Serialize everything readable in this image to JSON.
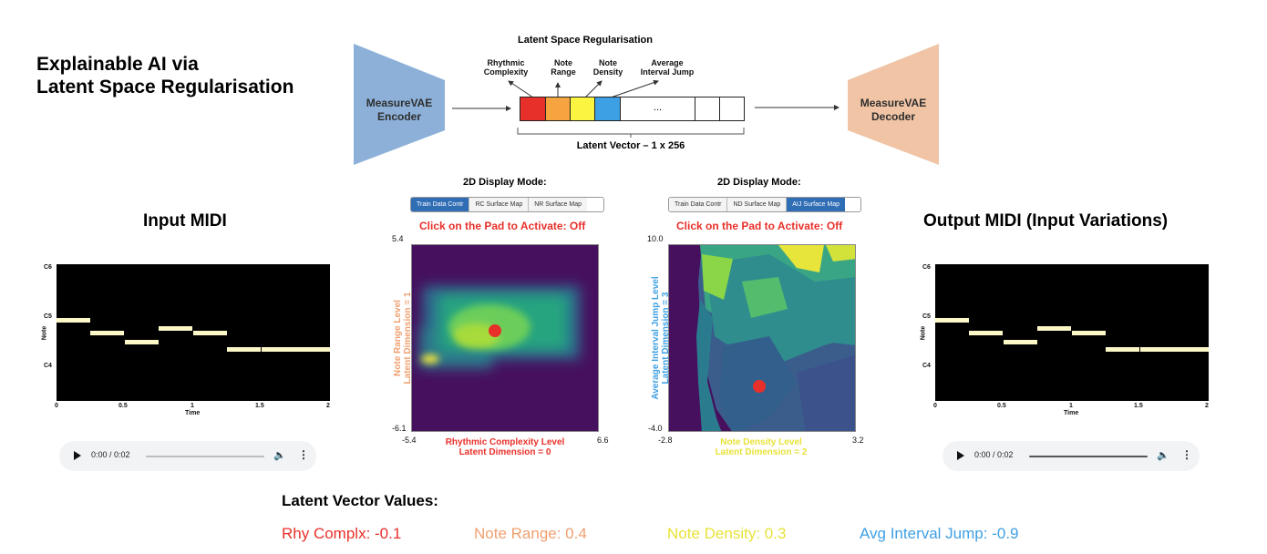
{
  "title": {
    "line1": "Explainable AI via",
    "line2": "Latent Space Regularisation"
  },
  "diagram": {
    "heading": "Latent Space Regularisation",
    "encoder": {
      "line1": "MeasureVAE",
      "line2": "Encoder",
      "color": "#8cb0d8"
    },
    "decoder": {
      "line1": "MeasureVAE",
      "line2": "Decoder",
      "color": "#f0c4a4"
    },
    "vector_caption": "Latent Vector – 1 x 256",
    "ellipsis": "...",
    "cells": [
      {
        "color": "#e8302a"
      },
      {
        "color": "#f5a43f"
      },
      {
        "color": "#fbf542"
      },
      {
        "color": "#3ea0e4"
      }
    ],
    "annotations": [
      {
        "line1": "Rhythmic",
        "line2": "Complexity"
      },
      {
        "line1": "Note",
        "line2": "Range"
      },
      {
        "line1": "Note",
        "line2": "Density"
      },
      {
        "line1": "Average",
        "line2": "Interval Jump"
      }
    ]
  },
  "input": {
    "title": "Input MIDI",
    "roll": {
      "ylabel": "Note",
      "xlabel": "Time",
      "yticks": [
        "C6",
        "C5",
        "C4"
      ],
      "xticks": [
        "0",
        "0.5",
        "1",
        "1.5",
        "2"
      ]
    },
    "player": {
      "time": "0:00 / 0:02"
    }
  },
  "output": {
    "title": "Output MIDI (Input Variations)",
    "roll": {
      "ylabel": "Note",
      "xlabel": "Time",
      "yticks": [
        "C6",
        "C5",
        "C4"
      ],
      "xticks": [
        "0",
        "0.5",
        "1",
        "1.5",
        "2"
      ]
    },
    "player": {
      "time": "0:00 / 0:02"
    }
  },
  "pad1": {
    "mode_title": "2D Display Mode:",
    "tabs": [
      {
        "label": "Train Data Contr",
        "active": true
      },
      {
        "label": "RC Surface Map",
        "active": false
      },
      {
        "label": "NR Surface Map",
        "active": false
      }
    ],
    "status": "Click on the Pad to Activate: Off",
    "y_max": "5.4",
    "y_min": "-6.1",
    "x_min": "-5.4",
    "x_max": "6.6",
    "xlabel": {
      "line1": "Rhythmic Complexity Level",
      "line2": "Latent Dimension = 0",
      "color": "#e8302a"
    },
    "ylabel": {
      "line1": "Note Range Level",
      "line2": "Latent Dimension = 1",
      "color": "#f0a070"
    }
  },
  "pad2": {
    "mode_title": "2D Display Mode:",
    "tabs": [
      {
        "label": "Train Data Contr",
        "active": false
      },
      {
        "label": "ND Surface Map",
        "active": false
      },
      {
        "label": "AIJ Surface Map",
        "active": true
      }
    ],
    "status": "Click on the Pad to Activate: Off",
    "y_max": "10.0",
    "y_min": "-4.0",
    "x_min": "-2.8",
    "x_max": "3.2",
    "xlabel": {
      "line1": "Note Density Level",
      "line2": "Latent Dimension = 2",
      "color": "#e8e23a"
    },
    "ylabel": {
      "line1": "Average Interval Jump Level",
      "line2": "Latent Dimension = 3",
      "color": "#3ea0e4"
    }
  },
  "latent_values": {
    "title": "Latent Vector Values:",
    "items": [
      {
        "text": "Rhy Complx: -0.1",
        "color": "#e8302a"
      },
      {
        "text": "Note Range: 0.4",
        "color": "#f0a070"
      },
      {
        "text": "Note Density: 0.3",
        "color": "#e8e23a"
      },
      {
        "text": "Avg Interval Jump: -0.9",
        "color": "#3ea0e4"
      }
    ]
  }
}
